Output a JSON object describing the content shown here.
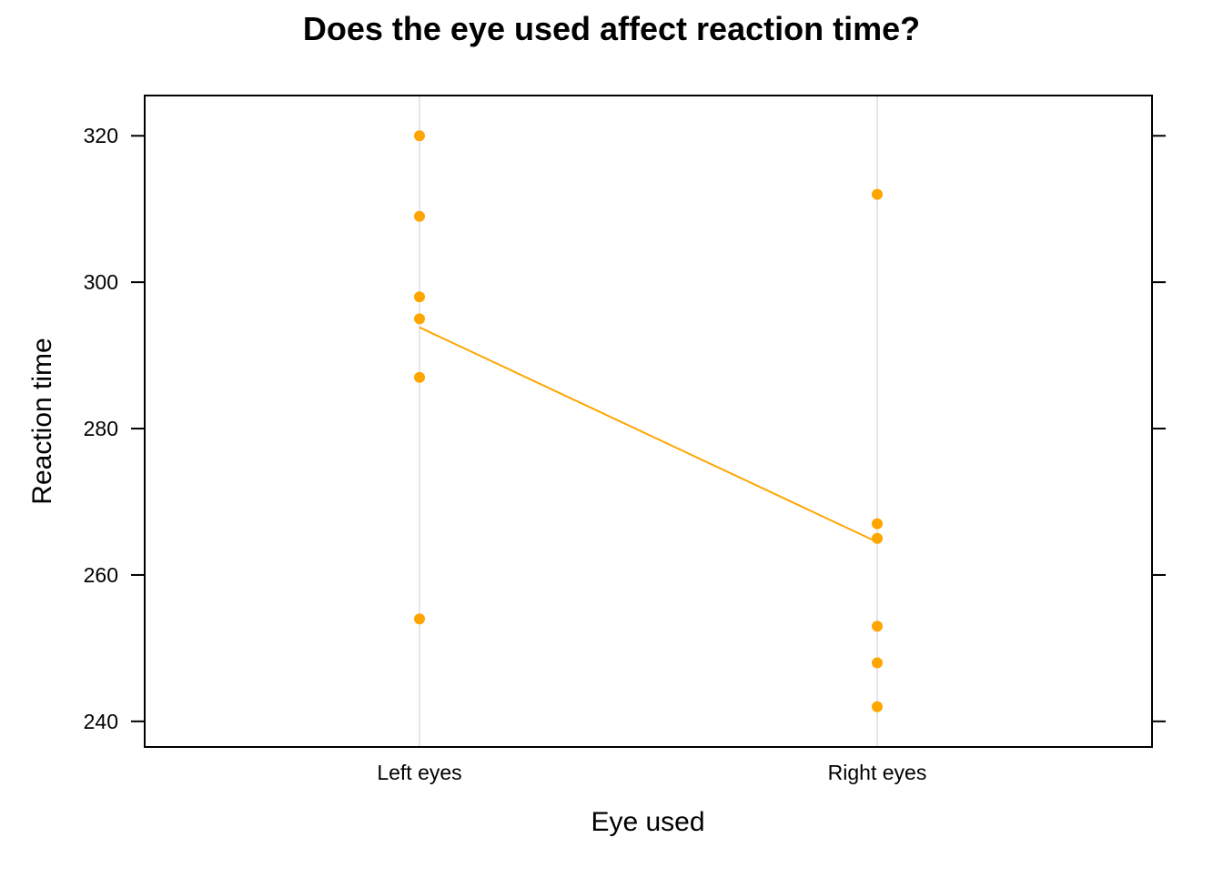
{
  "chart_data": {
    "type": "scatter",
    "title": "Does the eye used affect reaction time?",
    "xlabel": "Eye used",
    "ylabel": "Reaction time",
    "categories": [
      "Left eyes",
      "Right eyes"
    ],
    "ylim": [
      236.5,
      325.5
    ],
    "yticks": [
      240,
      260,
      280,
      300,
      320
    ],
    "grid": "vertical category lines",
    "legend": "none",
    "colors": {
      "points": "#FFA500",
      "mean_line": "#FFA500",
      "grid": "#E6E6E6",
      "axes": "#000000"
    },
    "series": [
      {
        "points": [
          {
            "x": "Left eyes",
            "y": 320
          },
          {
            "x": "Left eyes",
            "y": 309
          },
          {
            "x": "Left eyes",
            "y": 298
          },
          {
            "x": "Left eyes",
            "y": 295
          },
          {
            "x": "Left eyes",
            "y": 287
          },
          {
            "x": "Left eyes",
            "y": 254
          },
          {
            "x": "Right eyes",
            "y": 312
          },
          {
            "x": "Right eyes",
            "y": 267
          },
          {
            "x": "Right eyes",
            "y": 265
          },
          {
            "x": "Right eyes",
            "y": 253
          },
          {
            "x": "Right eyes",
            "y": 248
          },
          {
            "x": "Right eyes",
            "y": 242
          }
        ]
      }
    ],
    "mean_line": [
      {
        "x": "Left eyes",
        "y": 293.83
      },
      {
        "x": "Right eyes",
        "y": 264.5
      }
    ]
  }
}
